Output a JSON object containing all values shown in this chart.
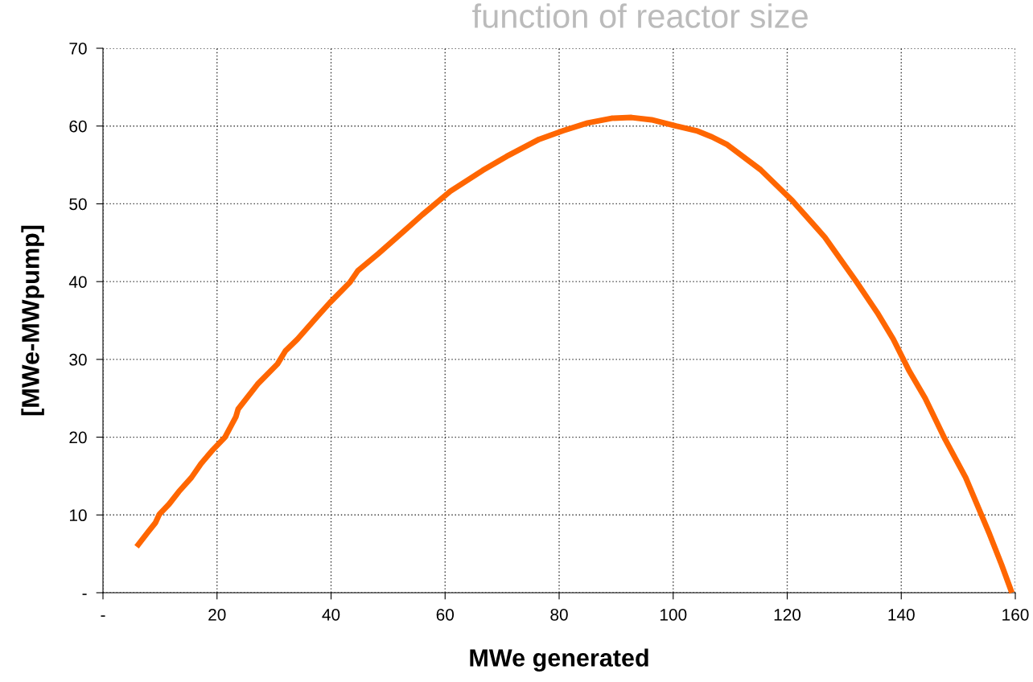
{
  "chart_data": {
    "type": "line",
    "title": "function of reactor size",
    "xlabel": "MWe generated",
    "ylabel": "[MWe-MWpump]",
    "xlim": [
      0,
      160
    ],
    "xticks": [
      {
        "value": 0,
        "label": "-"
      },
      20,
      40,
      60,
      80,
      100,
      120,
      140,
      160
    ],
    "ylim": [
      0,
      70
    ],
    "yticks": [
      {
        "value": 0,
        "label": "-"
      },
      10,
      20,
      30,
      40,
      50,
      60,
      70
    ],
    "grid": true,
    "marker": "none",
    "line_style": "solid",
    "x": [
      5.9,
      8.0,
      9.2,
      9.9,
      11.6,
      13.3,
      15.5,
      17.2,
      19.3,
      21.4,
      23.3,
      23.7,
      27.1,
      30.6,
      32.0,
      34.1,
      37.7,
      39.8,
      43.3,
      44.7,
      48.3,
      52.5,
      56.0,
      60.9,
      66.6,
      70.8,
      76.5,
      80.7,
      85.0,
      89.2,
      92.7,
      96.2,
      100.5,
      104.1,
      106.8,
      109.5,
      115.3,
      120.9,
      126.6,
      132.2,
      135.8,
      138.6,
      141.4,
      144.2,
      147.7,
      151.3,
      155.5,
      157.6,
      159.4
    ],
    "series": [
      {
        "color": "#ff6600",
        "values": [
          5.9,
          7.9,
          9.0,
          10.1,
          11.4,
          13.0,
          14.8,
          16.6,
          18.4,
          20.0,
          22.6,
          23.6,
          26.8,
          29.4,
          31.1,
          32.6,
          35.6,
          37.3,
          39.9,
          41.4,
          43.6,
          46.3,
          48.6,
          51.6,
          54.3,
          56.1,
          58.3,
          59.4,
          60.4,
          61.0,
          61.1,
          60.8,
          60.0,
          59.4,
          58.6,
          57.6,
          54.4,
          50.4,
          45.7,
          39.9,
          36.0,
          32.6,
          28.5,
          25.0,
          19.7,
          14.8,
          7.5,
          3.6,
          0.0
        ]
      }
    ]
  }
}
